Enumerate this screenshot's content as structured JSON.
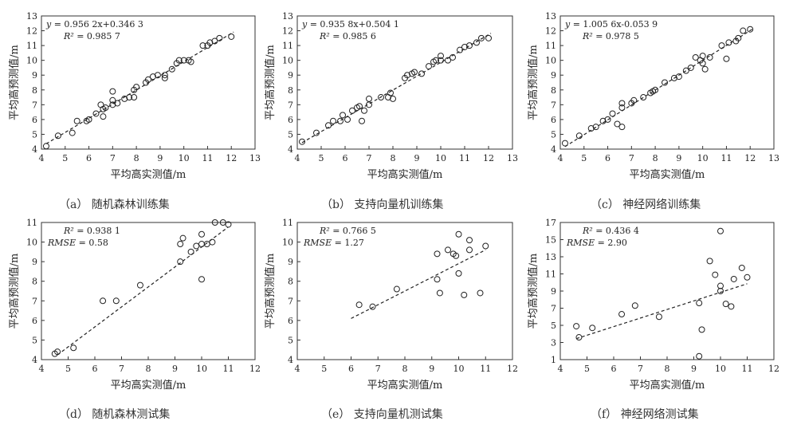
{
  "chart_data": [
    {
      "type": "scatter",
      "xlabel": "平均高实测值/m",
      "ylabel": "平均高预测值/m",
      "xlim": [
        4,
        13
      ],
      "ylim": [
        4,
        13
      ],
      "xticks": [
        "4",
        "5",
        "6",
        "7",
        "8",
        "9",
        "10",
        "11",
        "12",
        "13"
      ],
      "yticks": [
        "4",
        "5",
        "6",
        "7",
        "8",
        "9",
        "10",
        "11",
        "12",
        "13"
      ],
      "equation": "y = 0.956 2x+0.346 3",
      "r2": "R² = 0.985 7",
      "rmse": "",
      "caption": "（a） 随机森林训练集",
      "fit": {
        "slope": 0.9562,
        "intercept": 0.3463,
        "x_range": [
          4.2,
          12.1
        ]
      },
      "points": [
        [
          4.2,
          4.2
        ],
        [
          4.7,
          4.9
        ],
        [
          5.3,
          5.1
        ],
        [
          5.5,
          5.9
        ],
        [
          5.9,
          5.9
        ],
        [
          6.0,
          6.0
        ],
        [
          6.3,
          6.4
        ],
        [
          6.5,
          7.0
        ],
        [
          6.6,
          6.2
        ],
        [
          6.6,
          6.7
        ],
        [
          6.7,
          6.8
        ],
        [
          7.0,
          7.0
        ],
        [
          7.0,
          7.3
        ],
        [
          7.0,
          7.9
        ],
        [
          7.2,
          7.1
        ],
        [
          7.5,
          7.4
        ],
        [
          7.7,
          7.5
        ],
        [
          7.9,
          7.5
        ],
        [
          7.9,
          8.0
        ],
        [
          8.0,
          8.2
        ],
        [
          8.4,
          8.5
        ],
        [
          8.5,
          8.7
        ],
        [
          8.7,
          8.9
        ],
        [
          8.9,
          9.0
        ],
        [
          9.2,
          8.8
        ],
        [
          9.2,
          9.0
        ],
        [
          9.5,
          9.4
        ],
        [
          9.7,
          9.8
        ],
        [
          9.8,
          10.0
        ],
        [
          10.0,
          10.0
        ],
        [
          10.2,
          10.0
        ],
        [
          10.3,
          9.9
        ],
        [
          10.8,
          11.0
        ],
        [
          11.0,
          11.0
        ],
        [
          11.1,
          11.2
        ],
        [
          11.3,
          11.3
        ],
        [
          11.5,
          11.5
        ],
        [
          12.0,
          11.6
        ]
      ]
    },
    {
      "type": "scatter",
      "xlabel": "平均高实测值/m",
      "ylabel": "平均高预测值/m",
      "xlim": [
        4,
        13
      ],
      "ylim": [
        4,
        13
      ],
      "xticks": [
        "4",
        "5",
        "6",
        "7",
        "8",
        "9",
        "10",
        "11",
        "12",
        "13"
      ],
      "yticks": [
        "4",
        "5",
        "6",
        "7",
        "8",
        "9",
        "10",
        "11",
        "12",
        "13"
      ],
      "equation": "y = 0.935 8x+0.504 1",
      "r2": "R² = 0.985 6",
      "rmse": "",
      "caption": "（b） 支持向量机训练集",
      "fit": {
        "slope": 0.9358,
        "intercept": 0.5041,
        "x_range": [
          4.2,
          12.1
        ]
      },
      "points": [
        [
          4.2,
          4.5
        ],
        [
          4.8,
          5.1
        ],
        [
          5.3,
          5.6
        ],
        [
          5.5,
          5.9
        ],
        [
          5.8,
          5.9
        ],
        [
          5.9,
          6.3
        ],
        [
          6.1,
          6.0
        ],
        [
          6.3,
          6.6
        ],
        [
          6.5,
          6.8
        ],
        [
          6.6,
          6.9
        ],
        [
          6.7,
          5.9
        ],
        [
          6.8,
          6.6
        ],
        [
          7.0,
          7.0
        ],
        [
          7.0,
          7.4
        ],
        [
          7.5,
          7.5
        ],
        [
          7.8,
          7.5
        ],
        [
          7.9,
          7.8
        ],
        [
          8.0,
          7.4
        ],
        [
          8.5,
          8.8
        ],
        [
          8.6,
          9.0
        ],
        [
          8.8,
          9.1
        ],
        [
          8.9,
          9.2
        ],
        [
          9.2,
          9.1
        ],
        [
          9.5,
          9.6
        ],
        [
          9.7,
          9.9
        ],
        [
          9.8,
          10.0
        ],
        [
          10.0,
          10.0
        ],
        [
          10.0,
          10.3
        ],
        [
          10.3,
          10.0
        ],
        [
          10.5,
          10.2
        ],
        [
          10.8,
          10.7
        ],
        [
          11.0,
          10.9
        ],
        [
          11.2,
          11.0
        ],
        [
          11.5,
          11.2
        ],
        [
          11.7,
          11.5
        ],
        [
          12.0,
          11.5
        ]
      ]
    },
    {
      "type": "scatter",
      "xlabel": "平均高实测值/m",
      "ylabel": "平均高预测值/m",
      "xlim": [
        4,
        13
      ],
      "ylim": [
        4,
        13
      ],
      "xticks": [
        "4",
        "5",
        "6",
        "7",
        "8",
        "9",
        "10",
        "11",
        "12",
        "13"
      ],
      "yticks": [
        "4",
        "5",
        "6",
        "7",
        "8",
        "9",
        "10",
        "11",
        "12",
        "13"
      ],
      "equation": "y = 1.005 6x-0.053 9",
      "r2": "R² = 0.978 5",
      "rmse": "",
      "caption": "（c） 神经网络训练集",
      "fit": {
        "slope": 1.0056,
        "intercept": -0.0539,
        "x_range": [
          4.2,
          12.1
        ]
      },
      "points": [
        [
          4.2,
          4.4
        ],
        [
          4.8,
          4.9
        ],
        [
          5.3,
          5.4
        ],
        [
          5.5,
          5.5
        ],
        [
          5.8,
          5.9
        ],
        [
          6.0,
          6.0
        ],
        [
          6.2,
          6.4
        ],
        [
          6.4,
          5.7
        ],
        [
          6.6,
          5.5
        ],
        [
          6.6,
          6.8
        ],
        [
          6.6,
          7.1
        ],
        [
          7.0,
          7.1
        ],
        [
          7.1,
          7.3
        ],
        [
          7.5,
          7.5
        ],
        [
          7.8,
          7.8
        ],
        [
          7.9,
          7.9
        ],
        [
          8.0,
          8.0
        ],
        [
          8.4,
          8.5
        ],
        [
          8.8,
          8.8
        ],
        [
          9.0,
          8.9
        ],
        [
          9.3,
          9.3
        ],
        [
          9.5,
          9.5
        ],
        [
          9.7,
          10.2
        ],
        [
          9.9,
          10.0
        ],
        [
          10.0,
          9.8
        ],
        [
          10.0,
          10.3
        ],
        [
          10.1,
          9.4
        ],
        [
          10.3,
          10.2
        ],
        [
          10.8,
          11.0
        ],
        [
          11.0,
          10.1
        ],
        [
          11.1,
          11.2
        ],
        [
          11.4,
          11.3
        ],
        [
          11.5,
          11.5
        ],
        [
          11.7,
          12.0
        ],
        [
          12.0,
          12.1
        ]
      ]
    },
    {
      "type": "scatter",
      "xlabel": "平均高实测值/m",
      "ylabel": "平均高预测值/m",
      "xlim": [
        4,
        12
      ],
      "ylim": [
        4,
        11
      ],
      "xticks": [
        "4",
        "5",
        "6",
        "7",
        "8",
        "9",
        "10",
        "11",
        "12"
      ],
      "yticks": [
        "4",
        "5",
        "6",
        "7",
        "8",
        "9",
        "10",
        "11"
      ],
      "equation": "",
      "r2": "R² = 0.938 1",
      "rmse": "RMSE = 0.58",
      "caption": "（d） 随机森林测试集",
      "fit": {
        "slope": 1.02,
        "intercept": -0.45,
        "x_range": [
          4.6,
          11.0
        ]
      },
      "points": [
        [
          4.5,
          4.3
        ],
        [
          4.6,
          4.4
        ],
        [
          5.2,
          4.6
        ],
        [
          6.3,
          7.0
        ],
        [
          6.8,
          7.0
        ],
        [
          7.7,
          7.8
        ],
        [
          9.2,
          9.0
        ],
        [
          9.2,
          9.9
        ],
        [
          9.3,
          10.2
        ],
        [
          9.6,
          9.5
        ],
        [
          9.8,
          9.8
        ],
        [
          10.0,
          8.1
        ],
        [
          10.0,
          9.9
        ],
        [
          10.0,
          10.4
        ],
        [
          10.2,
          9.9
        ],
        [
          10.4,
          10.0
        ],
        [
          10.5,
          11.0
        ],
        [
          10.8,
          11.0
        ],
        [
          11.0,
          10.9
        ]
      ]
    },
    {
      "type": "scatter",
      "xlabel": "平均高实测值/m",
      "ylabel": "平均高预测值/m",
      "xlim": [
        4,
        12
      ],
      "ylim": [
        4,
        11
      ],
      "xticks": [
        "4",
        "5",
        "6",
        "7",
        "8",
        "9",
        "10",
        "11",
        "12"
      ],
      "yticks": [
        "4",
        "5",
        "6",
        "7",
        "8",
        "9",
        "10",
        "11"
      ],
      "equation": "",
      "r2": "R² = 0.766 5",
      "rmse": "RMSE = 1.27",
      "caption": "（e） 支持向量机测试集",
      "fit": {
        "slope": 0.7,
        "intercept": 1.9,
        "x_range": [
          6.0,
          11.0
        ]
      },
      "points": [
        [
          6.3,
          6.8
        ],
        [
          6.8,
          6.7
        ],
        [
          7.7,
          7.6
        ],
        [
          9.2,
          8.1
        ],
        [
          9.2,
          9.4
        ],
        [
          9.3,
          7.4
        ],
        [
          9.6,
          9.6
        ],
        [
          9.8,
          9.4
        ],
        [
          9.9,
          9.3
        ],
        [
          10.0,
          10.4
        ],
        [
          10.0,
          8.4
        ],
        [
          10.2,
          7.3
        ],
        [
          10.4,
          10.1
        ],
        [
          10.4,
          9.6
        ],
        [
          10.8,
          7.4
        ],
        [
          11.0,
          9.8
        ]
      ]
    },
    {
      "type": "scatter",
      "xlabel": "平均高实测值/m",
      "ylabel": "平均高预测值/m",
      "xlim": [
        4,
        12
      ],
      "ylim": [
        1,
        17
      ],
      "xticks": [
        "4",
        "5",
        "6",
        "7",
        "8",
        "9",
        "10",
        "11",
        "12"
      ],
      "yticks": [
        "1",
        "3",
        "5",
        "7",
        "9",
        "11",
        "13",
        "15",
        "17"
      ],
      "equation": "",
      "r2": "R² = 0.436 4",
      "rmse": "RMSE = 2.90",
      "caption": "（f） 神经网络测试集",
      "fit": {
        "slope": 1.0,
        "intercept": -1.15,
        "x_range": [
          4.6,
          11.0
        ]
      },
      "points": [
        [
          4.6,
          4.9
        ],
        [
          4.7,
          3.6
        ],
        [
          5.2,
          4.7
        ],
        [
          6.3,
          6.3
        ],
        [
          6.8,
          7.3
        ],
        [
          7.7,
          6.0
        ],
        [
          9.2,
          1.4
        ],
        [
          9.2,
          7.6
        ],
        [
          9.3,
          4.5
        ],
        [
          9.6,
          12.5
        ],
        [
          9.8,
          10.9
        ],
        [
          10.0,
          9.0
        ],
        [
          10.0,
          9.6
        ],
        [
          10.0,
          16.0
        ],
        [
          10.2,
          7.5
        ],
        [
          10.4,
          7.2
        ],
        [
          10.5,
          10.4
        ],
        [
          10.8,
          11.7
        ],
        [
          11.0,
          10.6
        ]
      ]
    }
  ]
}
